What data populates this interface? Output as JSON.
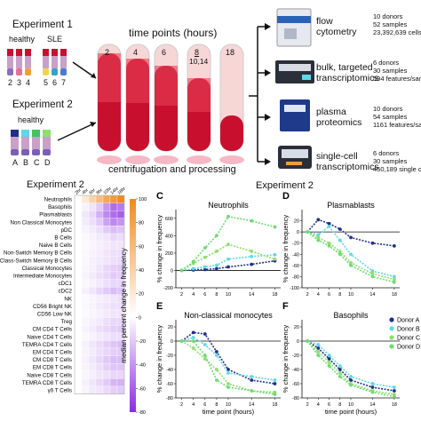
{
  "top": {
    "exp1_title": "Experiment 1",
    "exp1_group_healthy": "healthy",
    "exp1_group_sle": "SLE",
    "exp1_ids": [
      "2",
      "3",
      "4",
      "5",
      "6",
      "7"
    ],
    "exp2_title": "Experiment 2",
    "exp2_group_healthy": "healthy",
    "exp2_ids": [
      "A",
      "B",
      "C",
      "D"
    ],
    "timepoints_title": "time points (hours)",
    "tubes": [
      "2",
      "4",
      "6",
      "8",
      "18"
    ],
    "tube_extra": "10,14",
    "process_label": "centrifugation and processing",
    "assays": [
      {
        "name": "flow\ncytometry",
        "stats": "10 donors\n52 samples\n23,392,639 cells"
      },
      {
        "name": "bulk, targeted\ntranscriptomics",
        "stats": "6 donors\n30 samples\n594 features/samp"
      },
      {
        "name": "plasma\nproteomics",
        "stats": "10 donors\n54 samples\n1161 features/sam"
      },
      {
        "name": "single-cell\ntranscriptomics",
        "stats": "6 donors\n30 samples\n450,189 single ce"
      }
    ]
  },
  "heatmap": {
    "title": "Experiment 2",
    "col_labels": [
      "2hr",
      "4hr",
      "6hr",
      "8hr",
      "10hr",
      "14hr",
      "18hr"
    ],
    "rows": [
      "Neutrophils",
      "Basophils",
      "Plasmablasts",
      "Non Classical Monocytes",
      "pDC",
      "B Cells",
      "Naive B Cells",
      "Non-Switch Memory B Cells",
      "Class-Switch Memory B Cells",
      "Classical Monocytes",
      "Intermediate Monocytes",
      "cDC1",
      "cDC2",
      "NK",
      "CD56 Bright NK",
      "CD56 Low NK",
      "Treg",
      "CM CD4 T Cells",
      "Naive CD4 T Cells",
      "TEMRA CD4 T Cells",
      "EM CD4 T Cells",
      "CM CD8 T Cells",
      "EM CD8 T Cells",
      "Naive CD8 T Cells",
      "TEMRA CD8 T Cells",
      "γδ T Cells"
    ],
    "values": [
      [
        0,
        15,
        30,
        45,
        60,
        70,
        80
      ],
      [
        0,
        -5,
        -10,
        -20,
        -40,
        -55,
        -50
      ],
      [
        0,
        -10,
        -15,
        -30,
        -45,
        -55,
        -60
      ],
      [
        0,
        -8,
        -12,
        -20,
        -35,
        -45,
        -40
      ],
      [
        0,
        -5,
        -8,
        -12,
        -20,
        -25,
        -22
      ],
      [
        0,
        -3,
        -5,
        -8,
        -10,
        -15,
        -12
      ],
      [
        0,
        -2,
        -4,
        -6,
        -8,
        -10,
        -10
      ],
      [
        0,
        -3,
        -5,
        -7,
        -10,
        -12,
        -12
      ],
      [
        0,
        -3,
        -6,
        -8,
        -10,
        -12,
        -14
      ],
      [
        0,
        -4,
        -6,
        -10,
        -15,
        -18,
        -20
      ],
      [
        0,
        -5,
        -8,
        -12,
        -15,
        -20,
        -18
      ],
      [
        0,
        -3,
        -5,
        -8,
        -12,
        -15,
        -15
      ],
      [
        0,
        -6,
        -10,
        -15,
        -20,
        -25,
        -22
      ],
      [
        0,
        -2,
        -4,
        -6,
        -8,
        -10,
        -12
      ],
      [
        0,
        -3,
        -5,
        -8,
        -10,
        -12,
        -12
      ],
      [
        0,
        -2,
        -4,
        -6,
        -8,
        -10,
        -10
      ],
      [
        0,
        -4,
        -6,
        -8,
        -12,
        -15,
        -15
      ],
      [
        0,
        -5,
        -8,
        -12,
        -15,
        -18,
        -20
      ],
      [
        0,
        -3,
        -5,
        -8,
        -10,
        -12,
        -12
      ],
      [
        0,
        -6,
        -10,
        -14,
        -18,
        -22,
        -25
      ],
      [
        0,
        -5,
        -8,
        -12,
        -15,
        -18,
        -20
      ],
      [
        0,
        -6,
        -10,
        -15,
        -20,
        -25,
        -25
      ],
      [
        0,
        -5,
        -8,
        -12,
        -18,
        -22,
        -22
      ],
      [
        0,
        -4,
        -6,
        -10,
        -12,
        -15,
        -15
      ],
      [
        0,
        -6,
        -10,
        -15,
        -20,
        -28,
        -30
      ],
      [
        0,
        -4,
        -8,
        -10,
        -14,
        -18,
        -20
      ]
    ],
    "colorbar_label": "median percent change in frequency",
    "colorbar_ticks": [
      "-80",
      "-60",
      "-40",
      "-20",
      "0",
      "20",
      "40",
      "60",
      "80",
      "100"
    ],
    "color_pos": "#f08a1e",
    "color_neg": "#8a2be2"
  },
  "panels_header": "Experiment 2",
  "chart_data": [
    {
      "type": "line",
      "panel": "C",
      "title": "Neutrophils",
      "xlabel": "",
      "ylabel": "% change in frequency",
      "x": [
        2,
        4,
        6,
        8,
        10,
        14,
        18
      ],
      "xlim": [
        1,
        19
      ],
      "ylim": [
        -200,
        700
      ],
      "yticks": [
        -200,
        0,
        200,
        400,
        600
      ],
      "xticks": [
        2,
        4,
        6,
        8,
        10,
        14,
        18
      ],
      "series": [
        {
          "name": "Donor A",
          "color": "#1f2f8f",
          "x": [
            2,
            4,
            6,
            8,
            10,
            14,
            18
          ],
          "values": [
            0,
            5,
            10,
            20,
            40,
            70,
            110
          ]
        },
        {
          "name": "Donor B",
          "color": "#5fd8e6",
          "x": [
            2,
            4,
            6,
            8,
            10,
            14,
            18
          ],
          "values": [
            0,
            20,
            40,
            60,
            130,
            160,
            180
          ]
        },
        {
          "name": "Donor C",
          "color": "#8fe06a",
          "x": [
            2,
            4,
            6,
            8,
            10,
            14,
            18
          ],
          "values": [
            0,
            80,
            150,
            220,
            300,
            220,
            130
          ]
        },
        {
          "name": "Donor D",
          "color": "#6cdc73",
          "x": [
            2,
            4,
            6,
            8,
            10,
            14,
            18
          ],
          "values": [
            0,
            100,
            260,
            400,
            620,
            570,
            500
          ]
        }
      ]
    },
    {
      "type": "line",
      "panel": "D",
      "title": "Plasmablasts",
      "xlabel": "",
      "ylabel": "% change in frequency",
      "x": [
        2,
        4,
        6,
        8,
        10,
        14,
        18
      ],
      "xlim": [
        1,
        19
      ],
      "ylim": [
        -100,
        40
      ],
      "yticks": [
        -100,
        -80,
        -60,
        -40,
        -20,
        0,
        20
      ],
      "xticks": [
        2,
        4,
        6,
        8,
        10,
        14,
        18
      ],
      "series": [
        {
          "name": "Donor A",
          "color": "#1f2f8f",
          "x": [
            2,
            4,
            6,
            8,
            10,
            14,
            18
          ],
          "values": [
            0,
            22,
            15,
            5,
            -10,
            -20,
            -25
          ]
        },
        {
          "name": "Donor B",
          "color": "#5fd8e6",
          "x": [
            2,
            4,
            6,
            8,
            10,
            14,
            18
          ],
          "values": [
            0,
            -5,
            10,
            -15,
            -40,
            -70,
            -80
          ]
        },
        {
          "name": "Donor C",
          "color": "#8fe06a",
          "x": [
            2,
            4,
            6,
            8,
            10,
            14,
            18
          ],
          "values": [
            0,
            -10,
            -20,
            -35,
            -55,
            -75,
            -85
          ]
        },
        {
          "name": "Donor D",
          "color": "#6cdc73",
          "x": [
            2,
            4,
            6,
            8,
            10,
            14,
            18
          ],
          "values": [
            0,
            -15,
            -25,
            -40,
            -60,
            -80,
            -90
          ]
        }
      ]
    },
    {
      "type": "line",
      "panel": "E",
      "title": "Non-classical monocytes",
      "xlabel": "time point (hours)",
      "ylabel": "% change in frequency",
      "x": [
        2,
        4,
        6,
        8,
        10,
        14,
        18
      ],
      "xlim": [
        1,
        19
      ],
      "ylim": [
        -80,
        30
      ],
      "yticks": [
        -80,
        -60,
        -40,
        -20,
        0,
        20
      ],
      "xticks": [
        2,
        4,
        6,
        8,
        10,
        14,
        18
      ],
      "series": [
        {
          "name": "Donor A",
          "color": "#1f2f8f",
          "x": [
            2,
            4,
            6,
            8,
            10,
            14,
            18
          ],
          "values": [
            0,
            12,
            10,
            -15,
            -40,
            -55,
            -60
          ]
        },
        {
          "name": "Donor B",
          "color": "#5fd8e6",
          "x": [
            2,
            4,
            6,
            8,
            10,
            14,
            18
          ],
          "values": [
            0,
            5,
            -5,
            -20,
            -45,
            -50,
            -55
          ]
        },
        {
          "name": "Donor C",
          "color": "#8fe06a",
          "x": [
            2,
            4,
            6,
            8,
            10,
            14,
            18
          ],
          "values": [
            0,
            -10,
            -25,
            -40,
            -60,
            -70,
            -72
          ]
        },
        {
          "name": "Donor D",
          "color": "#6cdc73",
          "x": [
            2,
            4,
            6,
            8,
            10,
            14,
            18
          ],
          "values": [
            0,
            0,
            -20,
            -55,
            -65,
            -70,
            -75
          ]
        }
      ]
    },
    {
      "type": "line",
      "panel": "F",
      "title": "Basophils",
      "xlabel": "time point (hours)",
      "ylabel": "% change in frequency",
      "x": [
        2,
        4,
        6,
        8,
        10,
        14,
        18
      ],
      "xlim": [
        1,
        19
      ],
      "ylim": [
        -80,
        30
      ],
      "yticks": [
        -80,
        -60,
        -40,
        -20,
        0,
        20
      ],
      "xticks": [
        2,
        4,
        6,
        8,
        10,
        14,
        18
      ],
      "series": [
        {
          "name": "Donor A",
          "color": "#1f2f8f",
          "x": [
            2,
            4,
            6,
            8,
            10,
            14,
            18
          ],
          "values": [
            0,
            -10,
            -25,
            -40,
            -55,
            -65,
            -70
          ]
        },
        {
          "name": "Donor B",
          "color": "#5fd8e6",
          "x": [
            2,
            4,
            6,
            8,
            10,
            14,
            18
          ],
          "values": [
            0,
            -5,
            -20,
            -35,
            -50,
            -60,
            -65
          ]
        },
        {
          "name": "Donor C",
          "color": "#8fe06a",
          "x": [
            2,
            4,
            6,
            8,
            10,
            14,
            18
          ],
          "values": [
            0,
            -15,
            -30,
            -45,
            -60,
            -70,
            -75
          ]
        },
        {
          "name": "Donor D",
          "color": "#6cdc73",
          "x": [
            2,
            4,
            6,
            8,
            10,
            14,
            18
          ],
          "values": [
            0,
            -20,
            -35,
            -50,
            -62,
            -72,
            -78
          ]
        }
      ]
    }
  ],
  "legend": [
    "Donor A",
    "Donor B",
    "Donor C",
    "Donor D"
  ]
}
